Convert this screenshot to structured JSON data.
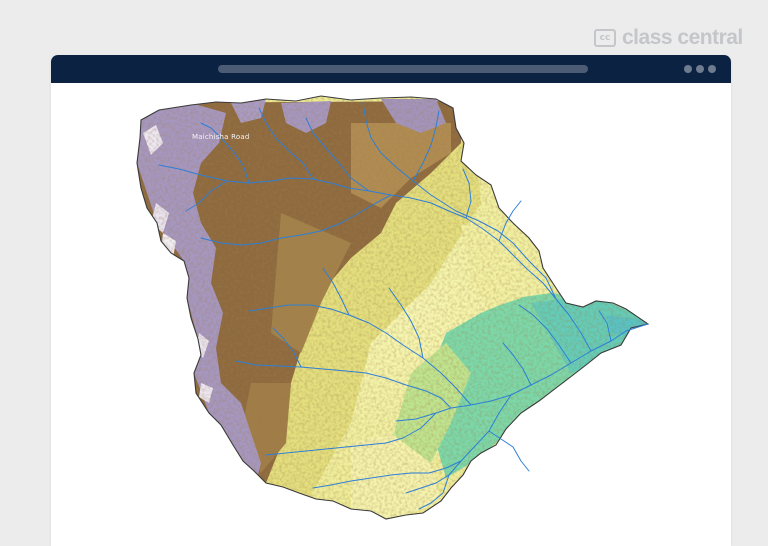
{
  "brand": {
    "icon_text": "cc",
    "name": "class central"
  },
  "map": {
    "label": "Maichisha Road",
    "colors": {
      "border": "#3a3a3a",
      "river": "#2e7fd6",
      "high_elevation": "#a697c0",
      "peak": "#ece7f2",
      "mid_elevation": "#8e6a3e",
      "low_mid": "#e6e27a",
      "low": "#f3f3a4",
      "lowland": "#7cd8a9",
      "outlet": "#5ec7c4"
    }
  }
}
